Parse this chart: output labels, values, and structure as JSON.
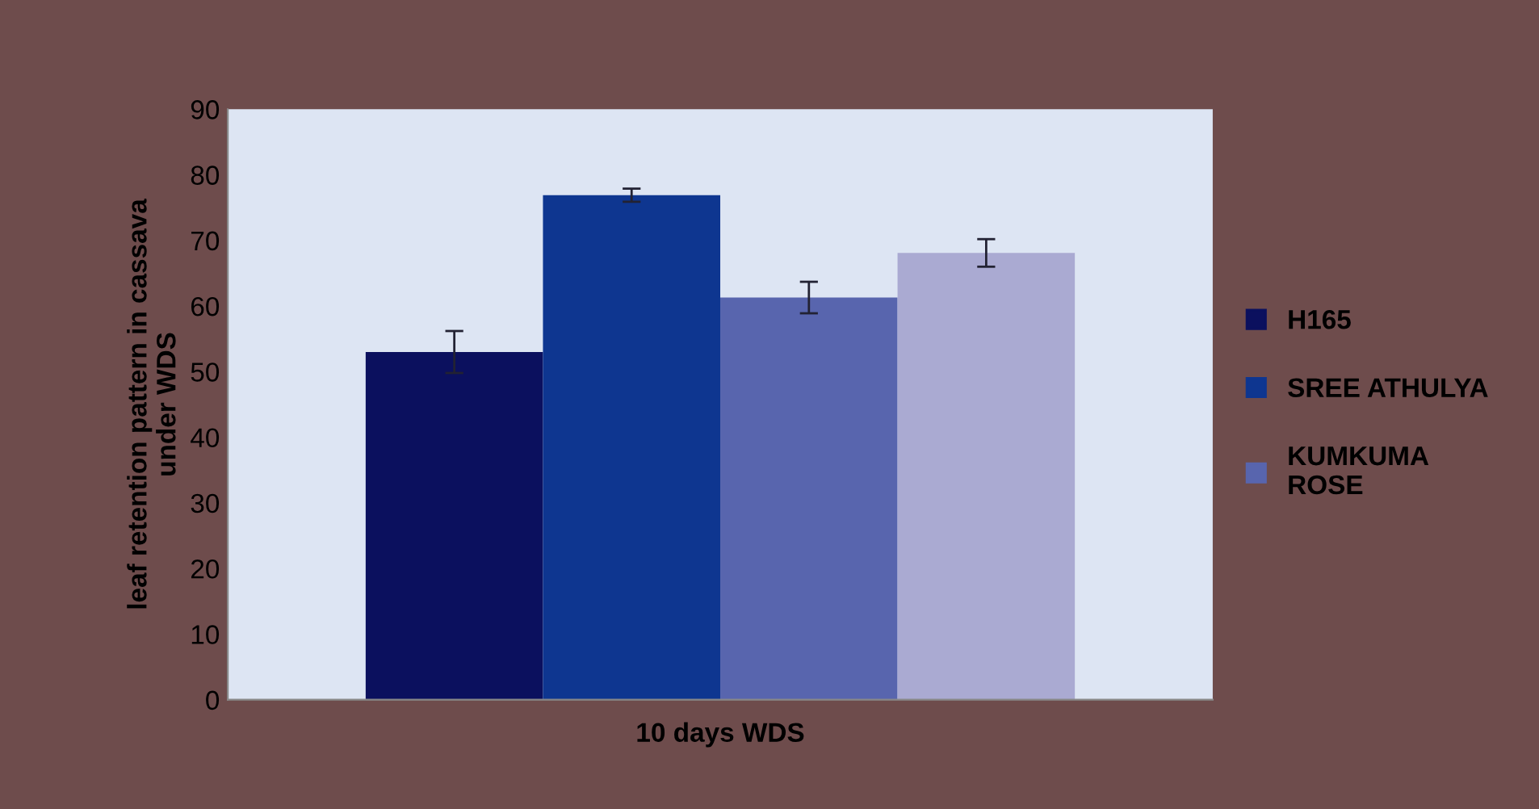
{
  "chart_data": {
    "type": "bar",
    "ylabel": "leaf retention pattern in cassava\nunder WDS",
    "categories": [
      "10 days WDS"
    ],
    "series": [
      {
        "name": "H165",
        "color": "#0b105e",
        "values": [
          53
        ],
        "errors": [
          3.2
        ]
      },
      {
        "name": "SREE ATHULYA",
        "color": "#0e3690",
        "values": [
          76.9
        ],
        "errors": [
          1
        ]
      },
      {
        "name": "KUMKUMA\nROSE",
        "color": "#5865ae",
        "values": [
          61.3
        ],
        "errors": [
          2.4
        ]
      },
      {
        "color": "#aaaad2",
        "values": [
          68.1
        ],
        "errors": [
          2.1
        ]
      }
    ],
    "ylim": [
      0,
      90
    ],
    "yticks": [
      0,
      10,
      20,
      30,
      40,
      50,
      60,
      70,
      80,
      90
    ],
    "grid": false,
    "legend": "right"
  }
}
